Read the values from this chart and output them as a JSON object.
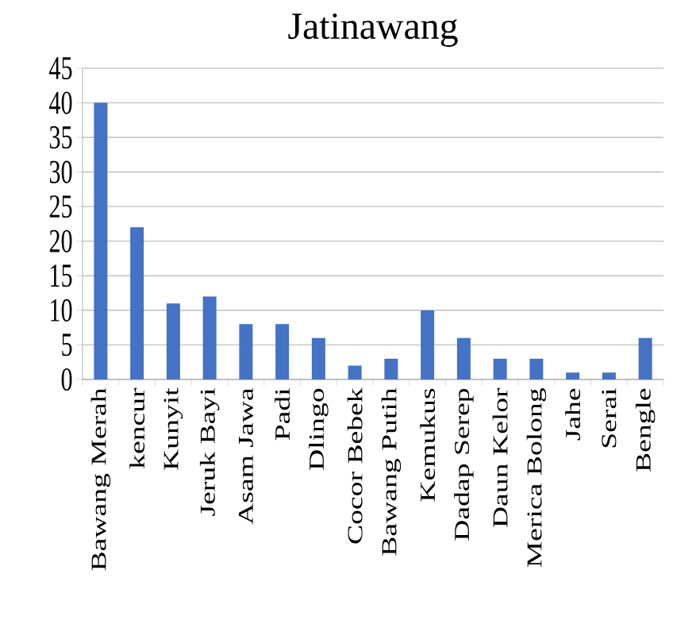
{
  "chart_data": {
    "type": "bar",
    "title": "Jatinawang",
    "categories": [
      "Bawang Merah",
      "kencur",
      "Kunyit",
      "Jeruk Bayi",
      "Asam Jawa",
      "Padi",
      "Dlingo",
      "Cocor Bebek",
      "Bawang Putih",
      "Kemukus",
      "Dadap Serep",
      "Daun Kelor",
      "Merica Bolong",
      "Jahe",
      "Serai",
      "Bengle"
    ],
    "values": [
      40,
      22,
      11,
      12,
      8,
      8,
      6,
      2,
      3,
      10,
      6,
      3,
      3,
      1,
      1,
      6
    ],
    "color": "#4472c4",
    "ylim": [
      0,
      45
    ],
    "yticks": [
      0,
      5,
      10,
      15,
      20,
      25,
      30,
      35,
      40,
      45
    ],
    "grid": "y"
  }
}
